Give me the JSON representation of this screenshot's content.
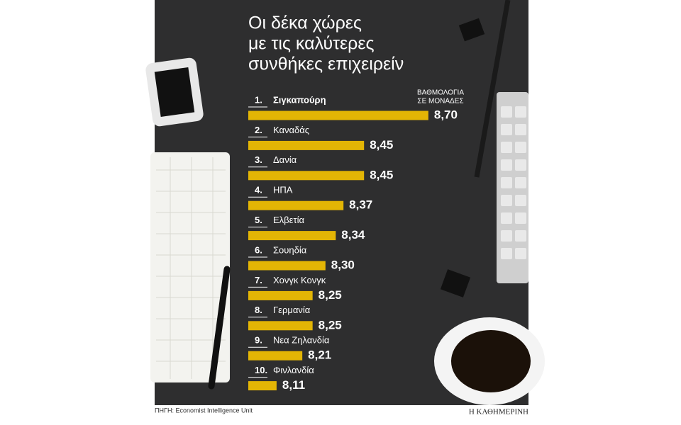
{
  "chart_data": {
    "type": "bar",
    "title_lines": [
      "Οι δέκα χώρες",
      "με τις καλύτερες",
      "συνθήκες επιχειρείν"
    ],
    "value_header_lines": [
      "ΒΑΘΜΟΛΟΓΙΑ",
      "ΣΕ ΜΟΝΑΔΕΣ"
    ],
    "ranks": [
      "1.",
      "2.",
      "3.",
      "4.",
      "5.",
      "6.",
      "7.",
      "8.",
      "9.",
      "10."
    ],
    "categories": [
      "Σιγκαπούρη",
      "Καναδάς",
      "Δανία",
      "ΗΠΑ",
      "Ελβετία",
      "Σουηδία",
      "Χονγκ Κονγκ",
      "Γερμανία",
      "Νεα Ζηλανδία",
      "Φινλανδία"
    ],
    "values": [
      8.7,
      8.45,
      8.45,
      8.37,
      8.34,
      8.3,
      8.25,
      8.25,
      8.21,
      8.11
    ],
    "value_labels": [
      "8,70",
      "8,45",
      "8,45",
      "8,37",
      "8,34",
      "8,30",
      "8,25",
      "8,25",
      "8,21",
      "8,11"
    ],
    "color": "#e3b505",
    "xlim": [
      8,
      8.75
    ],
    "source": "ΠΗΓΗ: Economist Intelligence Unit",
    "publisher": "Η ΚΑΘΗΜΕΡΙΝΗ"
  }
}
